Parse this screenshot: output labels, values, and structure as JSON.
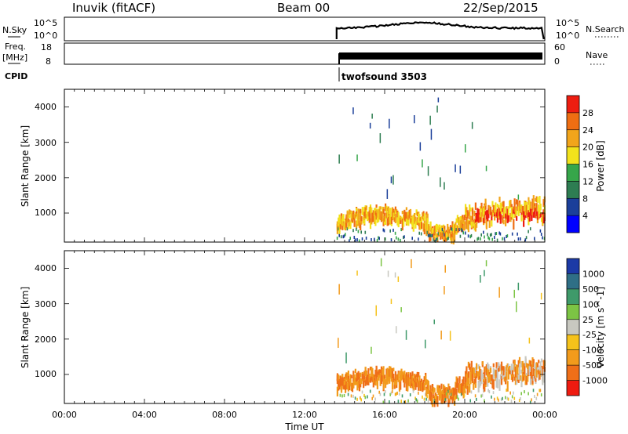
{
  "header": {
    "station": "Inuvik (fitACF)",
    "beam": "Beam 00",
    "date": "22/Sep/2015"
  },
  "top_panel": {
    "left_label": "N.Sky",
    "ticks_left": [
      "10^5",
      "10^0"
    ],
    "ticks_right": [
      "10^5",
      "10^0"
    ],
    "right_label": "N.Search"
  },
  "freq_panel": {
    "left_label_1": "Freq.",
    "left_label_2": "[MHz]",
    "ticks_left": [
      "18",
      "8"
    ],
    "ticks_right": [
      "60",
      "0"
    ],
    "right_label": "Nave"
  },
  "cpid": {
    "label": "CPID",
    "mode_text": "twofsound 3503"
  },
  "power_panel": {
    "ylabel": "Slant Range [km]",
    "yticks": [
      "4000",
      "3000",
      "2000",
      "1000"
    ],
    "colorbar_label": "Power [dB]",
    "colorbar_ticks": [
      "28",
      "24",
      "20",
      "16",
      "12",
      "8",
      "4"
    ],
    "colors": [
      "#0000ff",
      "#1b3f9a",
      "#2e7d52",
      "#36a64a",
      "#f2e21c",
      "#f2a51b",
      "#ef6e12",
      "#ee1d10"
    ]
  },
  "velocity_panel": {
    "ylabel": "Slant Range [km]",
    "yticks": [
      "4000",
      "3000",
      "2000",
      "1000"
    ],
    "colorbar_label": "Velocity [m s^-1]",
    "colorbar_ticks": [
      "1000",
      "500",
      "100",
      "25",
      "-25",
      "-100",
      "-500",
      "-1000"
    ],
    "colors": [
      "#1c3aa6",
      "#2f6f86",
      "#3f9a6a",
      "#7cc444",
      "#c8c8c0",
      "#f5c21b",
      "#f29b1c",
      "#ef6f18",
      "#ef1b10"
    ]
  },
  "x_axis": {
    "ticks": [
      "00:00",
      "04:00",
      "08:00",
      "12:00",
      "16:00",
      "20:00",
      "00:00"
    ],
    "label": "Time UT"
  },
  "chart_data": {
    "type": "heatmap",
    "title": "Inuvik (fitACF) Beam 00 22/Sep/2015",
    "x": [
      "00:00",
      "04:00",
      "08:00",
      "12:00",
      "16:00",
      "20:00",
      "00:00"
    ],
    "xlabel": "Time UT",
    "ylabel": "Slant Range [km]",
    "y_range_km": [
      180,
      4500
    ],
    "data_start_hour": 13.6,
    "data_end_hour": 24,
    "panels": [
      "Power [dB]",
      "Velocity [m s^-1]"
    ],
    "power_range_db": [
      0,
      30
    ],
    "velocity_range_ms": [
      -1000,
      1000
    ]
  }
}
